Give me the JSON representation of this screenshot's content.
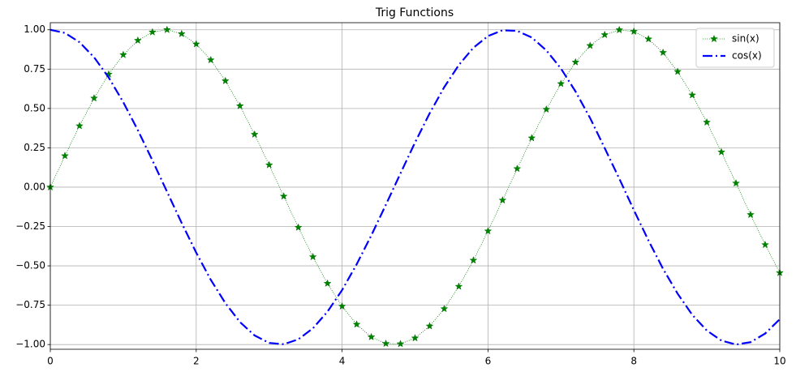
{
  "chart_data": {
    "type": "line",
    "title": "Trig Functions",
    "x": [
      0,
      0.2,
      0.4,
      0.6,
      0.8,
      1.0,
      1.2,
      1.4,
      1.6,
      1.8,
      2.0,
      2.2,
      2.4,
      2.6,
      2.8,
      3.0,
      3.2,
      3.4,
      3.6,
      3.8,
      4.0,
      4.2,
      4.4,
      4.6,
      4.8,
      5.0,
      5.2,
      5.4,
      5.6,
      5.8,
      6.0,
      6.2,
      6.4,
      6.6,
      6.8,
      7.0,
      7.2,
      7.4,
      7.6,
      7.8,
      8.0,
      8.2,
      8.4,
      8.6,
      8.8,
      9.0,
      9.2,
      9.4,
      9.6,
      9.8,
      10.0
    ],
    "series": [
      {
        "name": "sin(x)",
        "color": "#008000",
        "line_style": "dotted",
        "marker": "star",
        "values": [
          0,
          0.199,
          0.389,
          0.565,
          0.717,
          0.841,
          0.932,
          0.985,
          1.0,
          0.974,
          0.909,
          0.808,
          0.675,
          0.516,
          0.335,
          0.141,
          -0.058,
          -0.256,
          -0.443,
          -0.612,
          -0.757,
          -0.872,
          -0.952,
          -0.994,
          -0.996,
          -0.959,
          -0.883,
          -0.773,
          -0.631,
          -0.465,
          -0.279,
          -0.083,
          0.117,
          0.312,
          0.494,
          0.657,
          0.794,
          0.899,
          0.968,
          0.999,
          0.989,
          0.941,
          0.855,
          0.734,
          0.585,
          0.412,
          0.223,
          0.025,
          -0.175,
          -0.366,
          -0.544
        ]
      },
      {
        "name": "cos(x)",
        "color": "#0000ff",
        "line_style": "dashdot",
        "marker": "none",
        "values": [
          1,
          0.98,
          0.921,
          0.825,
          0.697,
          0.54,
          0.362,
          0.17,
          -0.029,
          -0.227,
          -0.416,
          -0.589,
          -0.737,
          -0.857,
          -0.942,
          -0.99,
          -0.998,
          -0.967,
          -0.897,
          -0.791,
          -0.654,
          -0.49,
          -0.307,
          -0.112,
          0.087,
          0.284,
          0.469,
          0.635,
          0.776,
          0.886,
          0.96,
          0.997,
          0.993,
          0.951,
          0.869,
          0.754,
          0.608,
          0.439,
          0.248,
          0.054,
          -0.146,
          -0.339,
          -0.519,
          -0.677,
          -0.811,
          -0.911,
          -0.975,
          -1.0,
          -0.985,
          -0.93,
          -0.839
        ]
      }
    ],
    "xlim": [
      0,
      10
    ],
    "xticks": [
      0,
      2,
      4,
      6,
      8,
      10
    ],
    "ylim": [
      -1.03,
      1.045
    ],
    "yticks": [
      {
        "value": 1,
        "label": "1.00"
      },
      {
        "value": 0.75,
        "label": "0.75"
      },
      {
        "value": 0.5,
        "label": "0.50"
      },
      {
        "value": 0.25,
        "label": "0.25"
      },
      {
        "value": 0,
        "label": "0.00"
      },
      {
        "value": -0.25,
        "label": "−0.25"
      },
      {
        "value": -0.5,
        "label": "−0.50"
      },
      {
        "value": -0.75,
        "label": "−0.75"
      },
      {
        "value": -1,
        "label": "−1.00"
      }
    ],
    "grid": true,
    "legend": "upper-right"
  }
}
